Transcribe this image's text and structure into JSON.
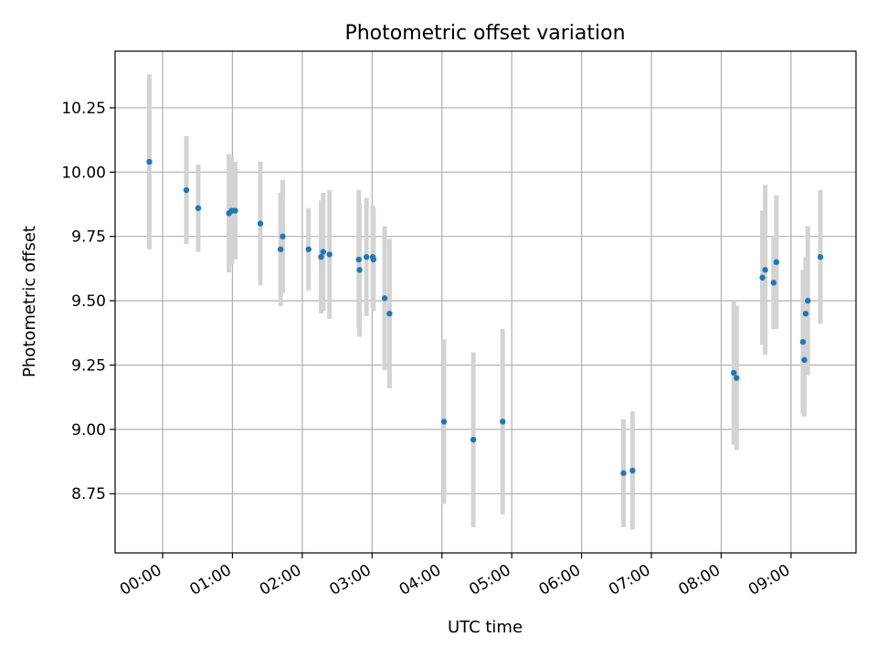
{
  "chart_data": {
    "type": "scatter",
    "title": "Photometric offset variation",
    "xlabel": "UTC time",
    "ylabel": "Photometric offset",
    "x_unit": "hours UTC",
    "xlim": [
      -0.68,
      9.93
    ],
    "ylim": [
      8.52,
      10.47
    ],
    "grid": true,
    "x_ticks": [
      {
        "value": 0,
        "label": "00:00"
      },
      {
        "value": 1,
        "label": "01:00"
      },
      {
        "value": 2,
        "label": "02:00"
      },
      {
        "value": 3,
        "label": "03:00"
      },
      {
        "value": 4,
        "label": "04:00"
      },
      {
        "value": 5,
        "label": "05:00"
      },
      {
        "value": 6,
        "label": "06:00"
      },
      {
        "value": 7,
        "label": "07:00"
      },
      {
        "value": 8,
        "label": "08:00"
      },
      {
        "value": 9,
        "label": "09:00"
      }
    ],
    "y_ticks": [
      {
        "value": 8.75,
        "label": "8.75"
      },
      {
        "value": 9.0,
        "label": "9.00"
      },
      {
        "value": 9.25,
        "label": "9.25"
      },
      {
        "value": 9.5,
        "label": "9.50"
      },
      {
        "value": 9.75,
        "label": "9.75"
      },
      {
        "value": 10.0,
        "label": "10.00"
      },
      {
        "value": 10.25,
        "label": "10.25"
      }
    ],
    "colors": {
      "point": "#1f77b4",
      "errorbar": "#d3d3d3",
      "grid": "#b0b0b0"
    },
    "points": [
      {
        "x": -0.19,
        "y": 10.04,
        "err": 0.34
      },
      {
        "x": 0.34,
        "y": 9.93,
        "err": 0.21
      },
      {
        "x": 0.51,
        "y": 9.86,
        "err": 0.17
      },
      {
        "x": 0.95,
        "y": 9.84,
        "err": 0.23
      },
      {
        "x": 0.99,
        "y": 9.85,
        "err": 0.21
      },
      {
        "x": 1.04,
        "y": 9.85,
        "err": 0.19
      },
      {
        "x": 1.4,
        "y": 9.8,
        "err": 0.24
      },
      {
        "x": 1.69,
        "y": 9.7,
        "err": 0.22
      },
      {
        "x": 1.72,
        "y": 9.75,
        "err": 0.22
      },
      {
        "x": 2.09,
        "y": 9.7,
        "err": 0.16
      },
      {
        "x": 2.27,
        "y": 9.67,
        "err": 0.22
      },
      {
        "x": 2.3,
        "y": 9.69,
        "err": 0.23
      },
      {
        "x": 2.39,
        "y": 9.68,
        "err": 0.25
      },
      {
        "x": 2.81,
        "y": 9.66,
        "err": 0.27
      },
      {
        "x": 2.82,
        "y": 9.62,
        "err": 0.26
      },
      {
        "x": 2.92,
        "y": 9.67,
        "err": 0.23
      },
      {
        "x": 3.01,
        "y": 9.67,
        "err": 0.2
      },
      {
        "x": 3.02,
        "y": 9.66,
        "err": 0.2
      },
      {
        "x": 3.18,
        "y": 9.51,
        "err": 0.28
      },
      {
        "x": 3.25,
        "y": 9.45,
        "err": 0.29
      },
      {
        "x": 4.03,
        "y": 9.03,
        "err": 0.32
      },
      {
        "x": 4.45,
        "y": 8.96,
        "err": 0.34
      },
      {
        "x": 4.87,
        "y": 9.03,
        "err": 0.36
      },
      {
        "x": 6.6,
        "y": 8.83,
        "err": 0.21
      },
      {
        "x": 6.73,
        "y": 8.84,
        "err": 0.23
      },
      {
        "x": 8.18,
        "y": 9.22,
        "err": 0.28
      },
      {
        "x": 8.22,
        "y": 9.2,
        "err": 0.28
      },
      {
        "x": 8.59,
        "y": 9.59,
        "err": 0.26
      },
      {
        "x": 8.63,
        "y": 9.62,
        "err": 0.33
      },
      {
        "x": 8.75,
        "y": 9.57,
        "err": 0.18
      },
      {
        "x": 8.79,
        "y": 9.65,
        "err": 0.26
      },
      {
        "x": 9.17,
        "y": 9.34,
        "err": 0.28
      },
      {
        "x": 9.19,
        "y": 9.27,
        "err": 0.22
      },
      {
        "x": 9.21,
        "y": 9.45,
        "err": 0.22
      },
      {
        "x": 9.24,
        "y": 9.5,
        "err": 0.29
      },
      {
        "x": 9.42,
        "y": 9.67,
        "err": 0.26
      }
    ]
  }
}
